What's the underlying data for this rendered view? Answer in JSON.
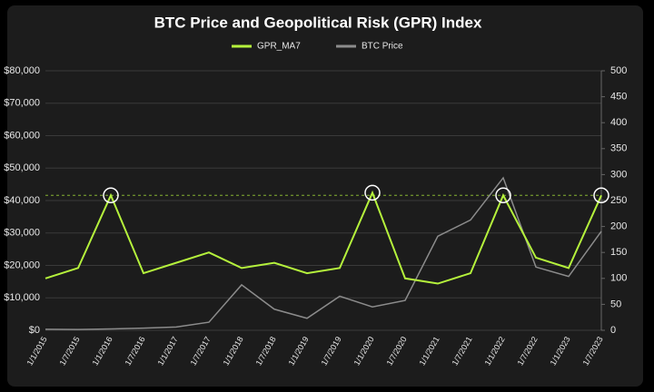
{
  "chart_data": {
    "type": "line",
    "title": "BTC Price and Geopolitical Risk (GPR) Index",
    "x": [
      "1/1/2015",
      "1/7/2015",
      "1/1/2016",
      "1/7/2016",
      "1/1/2017",
      "1/7/2017",
      "1/1/2018",
      "1/7/2018",
      "1/1/2019",
      "1/7/2019",
      "1/1/2020",
      "1/7/2020",
      "1/1/2021",
      "1/7/2021",
      "1/1/2022",
      "1/7/2022",
      "1/1/2023",
      "1/7/2023"
    ],
    "series": [
      {
        "name": "GPR_MA7",
        "color": "#b5f23c",
        "axis": "y2",
        "values": [
          100,
          120,
          260,
          110,
          130,
          150,
          120,
          130,
          110,
          120,
          265,
          100,
          90,
          110,
          260,
          140,
          120,
          260
        ]
      },
      {
        "name": "BTC Price",
        "color": "#8c8c8c",
        "values": [
          300,
          250,
          430,
          650,
          1000,
          2500,
          14000,
          6500,
          3700,
          10500,
          7200,
          9200,
          29000,
          34000,
          47000,
          19500,
          16600,
          30500
        ]
      }
    ],
    "ylim": [
      0,
      80000
    ],
    "yticks": [
      {
        "value": 0,
        "label": "$0"
      },
      {
        "value": 10000,
        "label": "$10,000"
      },
      {
        "value": 20000,
        "label": "$20,000"
      },
      {
        "value": 30000,
        "label": "$30,000"
      },
      {
        "value": 40000,
        "label": "$40,000"
      },
      {
        "value": 50000,
        "label": "$50,000"
      },
      {
        "value": 60000,
        "label": "$60,000"
      },
      {
        "value": 70000,
        "label": "$70,000"
      },
      {
        "value": 80000,
        "label": "$80,000"
      }
    ],
    "y2lim": [
      0,
      500
    ],
    "y2ticks": [
      0,
      50,
      100,
      150,
      200,
      250,
      300,
      350,
      400,
      450,
      500
    ],
    "threshold": {
      "value": 260,
      "axis": "y2",
      "color": "#b5f23c"
    },
    "highlights": [
      2,
      10,
      14,
      17
    ],
    "grid": true
  }
}
